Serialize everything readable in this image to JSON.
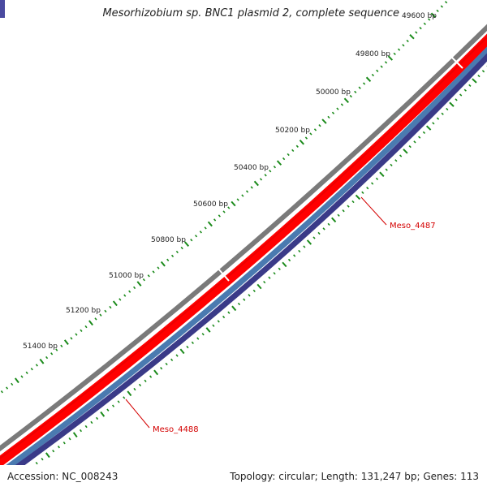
{
  "title": "Mesorhizobium sp. BNC1 plasmid 2, complete sequence",
  "footer": {
    "accession": "Accession: NC_008243",
    "summary": "Topology: circular; Length: 131,247 bp; Genes: 113"
  },
  "scale_labels": [
    "49600 bp",
    "49800 bp",
    "50000 bp",
    "50200 bp",
    "50400 bp",
    "50600 bp",
    "50800 bp",
    "51000 bp",
    "51200 bp",
    "51400 bp"
  ],
  "genes": [
    "Meso_4487",
    "Meso_4488"
  ],
  "colors": {
    "backbone": "#7a7a7a",
    "cds": "#ff0000",
    "strand_inner_1": "#4a7ab0",
    "strand_inner_2": "#3a3a88",
    "tick": "#1a8a1a",
    "gene_label": "#d40000",
    "label_text": "#222222"
  }
}
